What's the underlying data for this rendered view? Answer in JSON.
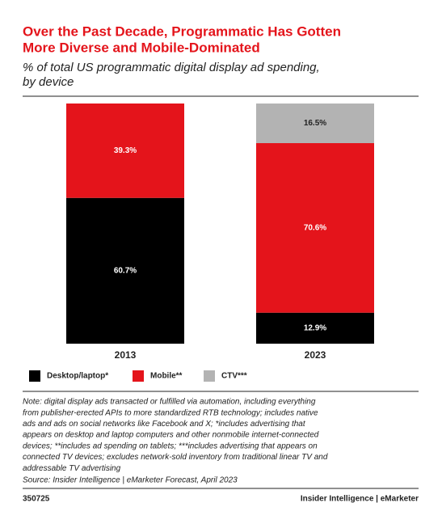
{
  "chart_data": {
    "type": "stacked-bar",
    "title": [
      "Over the Past Decade, Programmatic Has Gotten",
      "More Diverse and Mobile-Dominated"
    ],
    "subtitle": [
      "% of total US programmatic digital display ad spending,",
      "by device"
    ],
    "categories": [
      "2013",
      "2023"
    ],
    "series": [
      {
        "name": "Desktop/laptop*",
        "color": "#000000",
        "values": [
          60.7,
          12.9
        ],
        "value_labels": [
          "60.7%",
          "12.9%"
        ]
      },
      {
        "name": "Mobile**",
        "color": "#e4141b",
        "values": [
          39.3,
          70.6
        ],
        "value_labels": [
          "39.3%",
          "70.6%"
        ]
      },
      {
        "name": "CTV***",
        "color": "#b3b3b3",
        "values": [
          null,
          16.5
        ],
        "value_labels": [
          null,
          "16.5%"
        ]
      }
    ],
    "ylim": [
      0,
      100
    ],
    "note": [
      "Note: digital display ads transacted or fulfilled via automation, including everything",
      "from publisher-erected APIs to more standardized RTB technology; includes native",
      "ads and ads on social networks like Facebook and X; *includes advertising that",
      "appears on desktop and laptop computers and other nonmobile internet-connected",
      "devices; **includes ad spending on tablets; ***includes advertising that appears on",
      "connected TV devices; excludes network-sold inventory from traditional linear TV and",
      "addressable TV advertising"
    ],
    "source": "Source: Insider Intelligence | eMarketer Forecast, April 2023",
    "chart_id": "350725",
    "brand": "Insider Intelligence | eMarketer"
  }
}
